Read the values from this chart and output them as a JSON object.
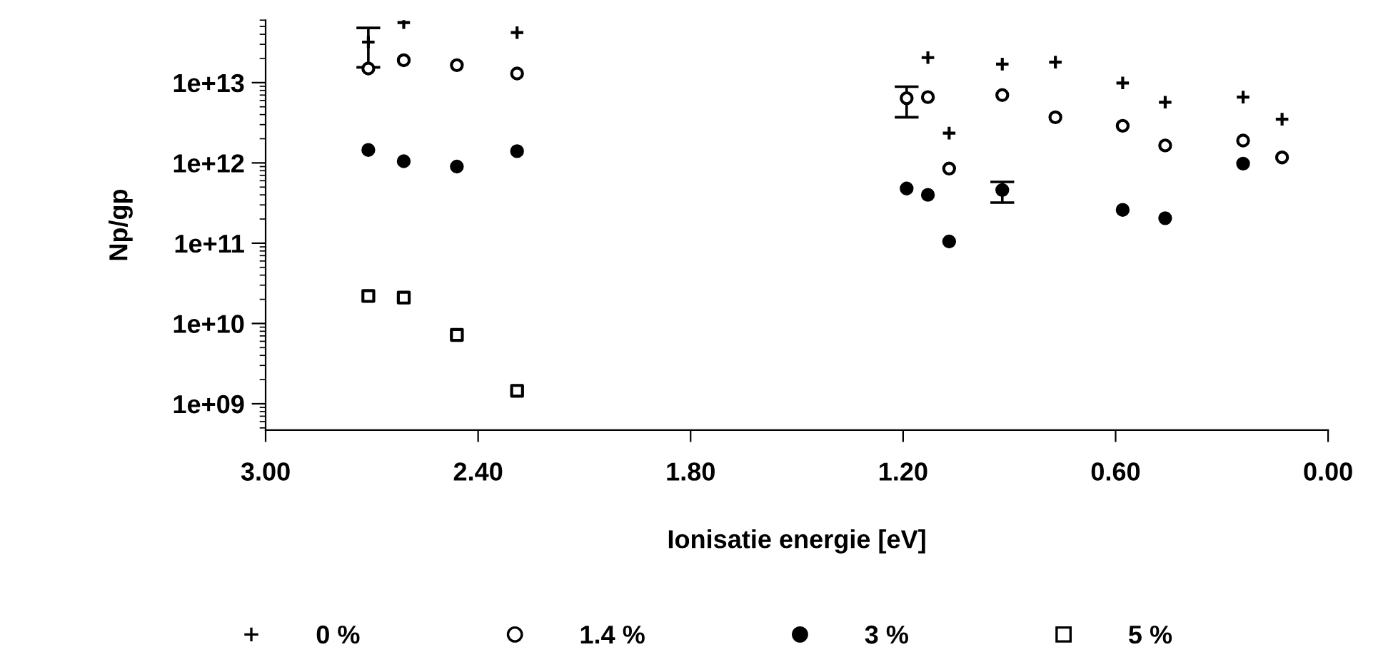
{
  "chart_data": {
    "type": "scatter",
    "xlabel": "Ionisatie energie [eV]",
    "ylabel": "Np/gp",
    "log": "y",
    "x": [
      2.71,
      2.61,
      2.46,
      2.29,
      1.19,
      1.13,
      1.07,
      0.92,
      0.77,
      0.58,
      0.46,
      0.24,
      0.13
    ],
    "series": [
      {
        "name": "0 %",
        "color": "#000000",
        "marker": "plus",
        "values": [
          32000000000000.0,
          56000000000000.0,
          null,
          42000000000000.0,
          null,
          20500000000000.0,
          2350000000000.0,
          17000000000000.0,
          18000000000000.0,
          9900000000000.0,
          5700000000000.0,
          6600000000000.0,
          3500000000000.0
        ],
        "errors": [
          [
            15500000000000.0,
            48000000000000.0
          ],
          null,
          null,
          null,
          null,
          null,
          null,
          null,
          null,
          null,
          null,
          null,
          null
        ]
      },
      {
        "name": "1.4 %",
        "color": "#000000",
        "marker": "circle-open",
        "values": [
          15000000000000.0,
          19000000000000.0,
          16500000000000.0,
          13000000000000.0,
          6400000000000.0,
          6600000000000.0,
          850000000000.0,
          7000000000000.0,
          3700000000000.0,
          2900000000000.0,
          1650000000000.0,
          1900000000000.0,
          1170000000000.0
        ],
        "errors": [
          null,
          null,
          null,
          null,
          [
            3700000000000.0,
            8900000000000.0
          ],
          null,
          null,
          null,
          null,
          null,
          null,
          null,
          null
        ]
      },
      {
        "name": "3 %",
        "color": "#000000",
        "marker": "circle",
        "values": [
          1450000000000.0,
          1050000000000.0,
          900000000000.0,
          1400000000000.0,
          480000000000.0,
          400000000000.0,
          105000000000.0,
          460000000000.0,
          null,
          260000000000.0,
          205000000000.0,
          980000000000.0,
          null
        ],
        "errors": [
          null,
          null,
          null,
          null,
          null,
          null,
          null,
          [
            320000000000.0,
            580000000000.0
          ],
          null,
          null,
          null,
          null,
          null
        ]
      },
      {
        "name": "5 %",
        "color": "#000000",
        "marker": "square-open",
        "values": [
          22000000000.0,
          21000000000.0,
          7200000000.0,
          1450000000.0,
          null,
          null,
          null,
          null,
          null,
          null,
          null,
          null,
          null
        ]
      }
    ],
    "xlim": [
      3.0,
      0.0
    ],
    "xticks": [
      {
        "value": 3.0,
        "label": "3.00"
      },
      {
        "value": 2.4,
        "label": "2.40"
      },
      {
        "value": 1.8,
        "label": "1.80"
      },
      {
        "value": 1.2,
        "label": "1.20"
      },
      {
        "value": 0.6,
        "label": "0.60"
      },
      {
        "value": 0.0,
        "label": "0.00"
      }
    ],
    "ylim": [
      470000000.0,
      60000000000000.0
    ],
    "yticks": [
      {
        "value": 1000000000.0,
        "label": "1e+09"
      },
      {
        "value": 10000000000.0,
        "label": "1e+10"
      },
      {
        "value": 100000000000.0,
        "label": "1e+11"
      },
      {
        "value": 1000000000000.0,
        "label": "1e+12"
      },
      {
        "value": 10000000000000.0,
        "label": "1e+13"
      }
    ],
    "grid": false,
    "legend": "bottom"
  }
}
